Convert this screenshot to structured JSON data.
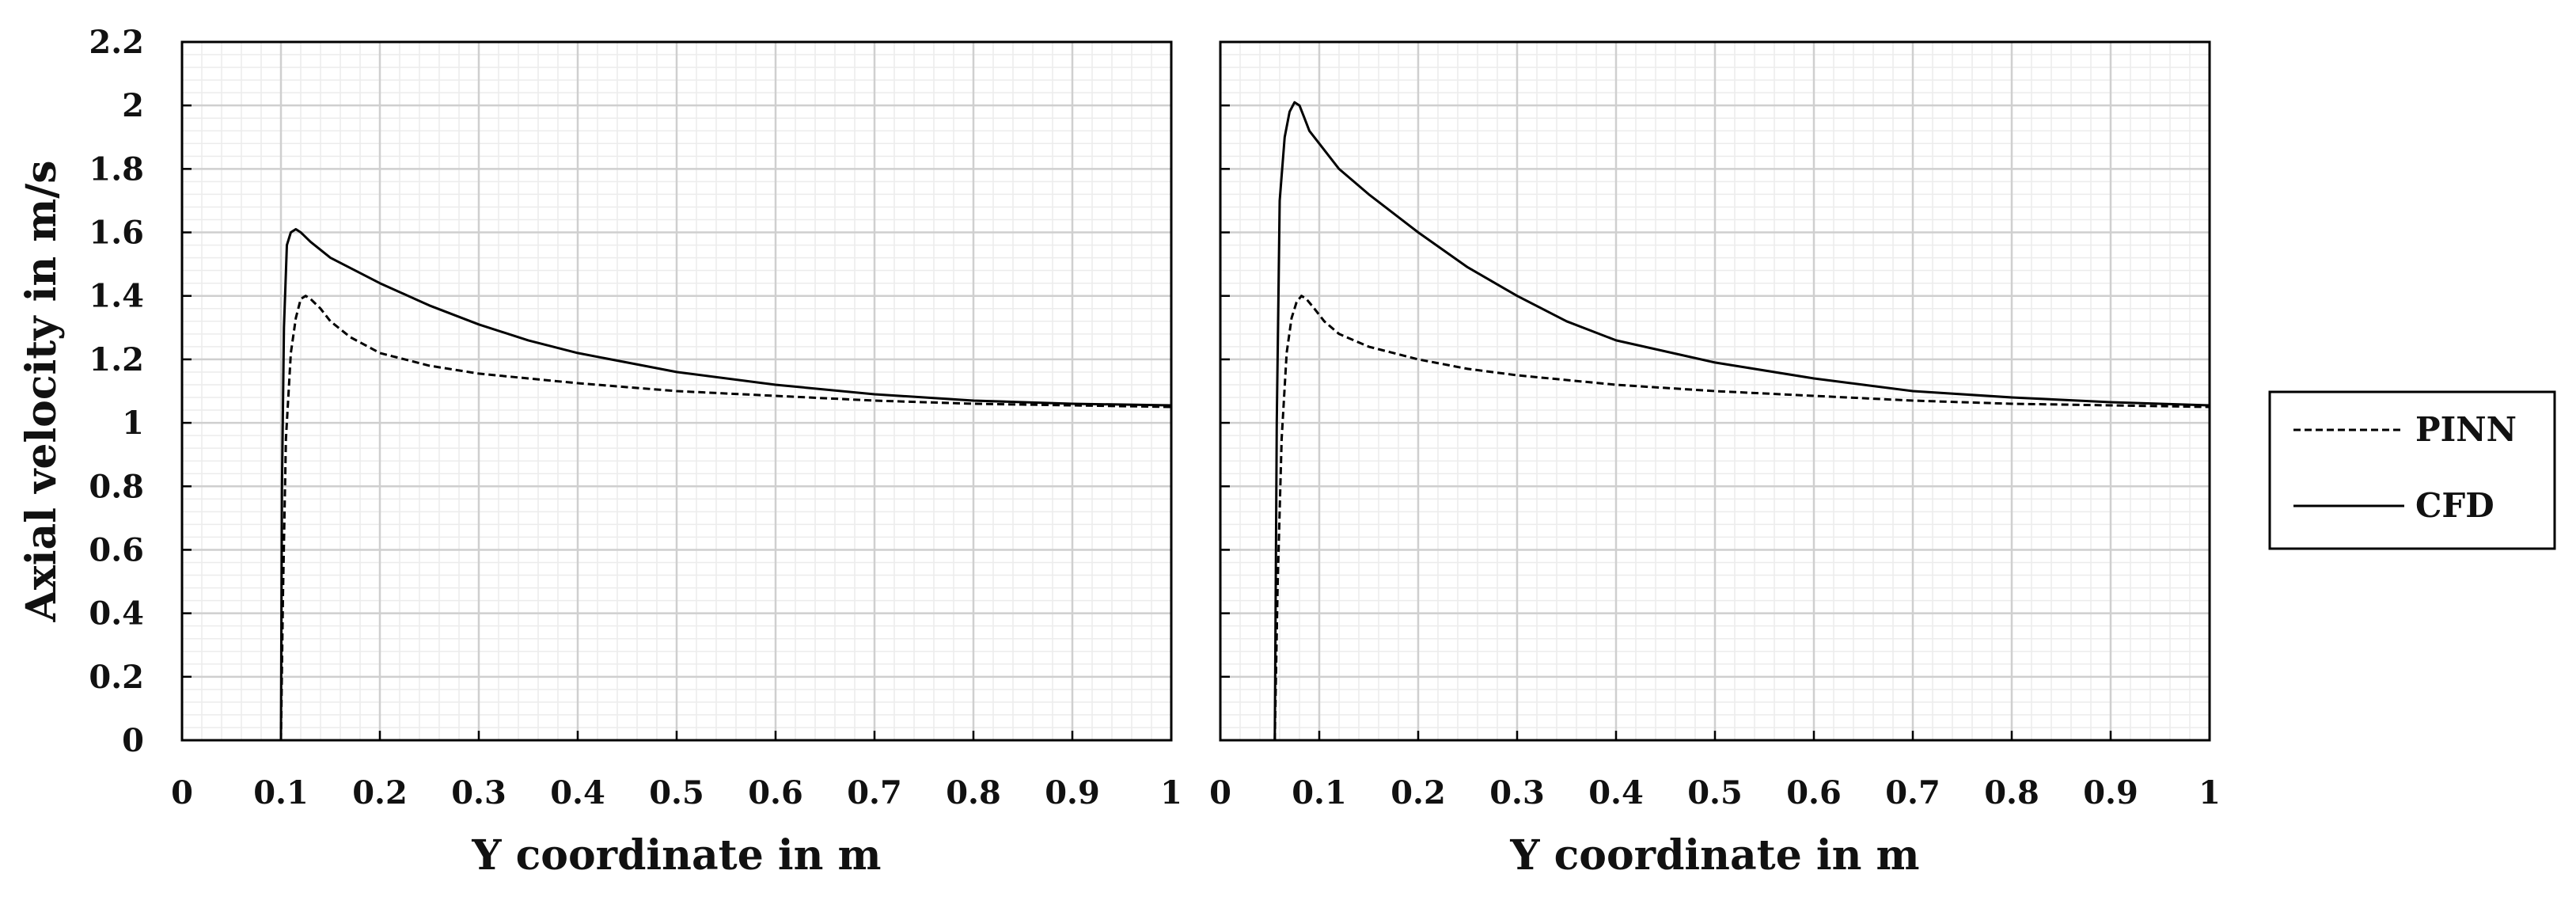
{
  "chart_data": {
    "type": "line",
    "ylabel": "Axial velocity in m/s",
    "legend": {
      "placement": "right",
      "entries": [
        {
          "label": "PINN",
          "style": "dashed"
        },
        {
          "label": "CFD",
          "style": "solid"
        }
      ]
    },
    "grid": true,
    "panels": [
      {
        "xlabel": "Y coordinate in m",
        "xlim": [
          0,
          1
        ],
        "ylim": [
          0,
          2.2
        ],
        "xticks": [
          "0",
          "0.1",
          "0.2",
          "0.3",
          "0.4",
          "0.5",
          "0.6",
          "0.7",
          "0.8",
          "0.9",
          "1"
        ],
        "yticks": [
          "0",
          "0.2",
          "0.4",
          "0.6",
          "0.8",
          "1",
          "1.2",
          "1.4",
          "1.6",
          "1.8",
          "2",
          "2.2"
        ],
        "series": [
          {
            "name": "PINN",
            "style": "dashed",
            "x": [
              0.1,
              0.102,
              0.105,
              0.11,
              0.115,
              0.12,
              0.125,
              0.13,
              0.14,
              0.15,
              0.17,
              0.2,
              0.25,
              0.3,
              0.35,
              0.4,
              0.5,
              0.6,
              0.7,
              0.8,
              0.9,
              1.0
            ],
            "y": [
              0.0,
              0.45,
              0.95,
              1.22,
              1.33,
              1.39,
              1.4,
              1.39,
              1.36,
              1.32,
              1.27,
              1.22,
              1.18,
              1.155,
              1.14,
              1.125,
              1.1,
              1.085,
              1.07,
              1.06,
              1.055,
              1.05
            ]
          },
          {
            "name": "CFD",
            "style": "solid",
            "x": [
              0.1,
              0.101,
              0.103,
              0.106,
              0.11,
              0.115,
              0.12,
              0.13,
              0.15,
              0.2,
              0.25,
              0.3,
              0.35,
              0.4,
              0.45,
              0.5,
              0.6,
              0.7,
              0.8,
              0.9,
              1.0
            ],
            "y": [
              0.0,
              0.8,
              1.3,
              1.56,
              1.6,
              1.61,
              1.6,
              1.57,
              1.52,
              1.44,
              1.37,
              1.31,
              1.26,
              1.22,
              1.19,
              1.16,
              1.12,
              1.09,
              1.07,
              1.06,
              1.055
            ]
          }
        ]
      },
      {
        "xlabel": "Y coordinate in m",
        "xlim": [
          0,
          1
        ],
        "ylim": [
          0,
          2.2
        ],
        "xticks": [
          "0",
          "0.1",
          "0.2",
          "0.3",
          "0.4",
          "0.5",
          "0.6",
          "0.7",
          "0.8",
          "0.9",
          "1"
        ],
        "series": [
          {
            "name": "PINN",
            "style": "dashed",
            "x": [
              0.055,
              0.058,
              0.062,
              0.067,
              0.072,
              0.077,
              0.082,
              0.087,
              0.095,
              0.105,
              0.12,
              0.15,
              0.2,
              0.25,
              0.3,
              0.4,
              0.5,
              0.6,
              0.7,
              0.8,
              0.9,
              1.0
            ],
            "y": [
              0.0,
              0.5,
              0.95,
              1.22,
              1.33,
              1.38,
              1.4,
              1.39,
              1.36,
              1.32,
              1.28,
              1.24,
              1.2,
              1.17,
              1.15,
              1.12,
              1.1,
              1.085,
              1.07,
              1.06,
              1.055,
              1.05
            ]
          },
          {
            "name": "CFD",
            "style": "solid",
            "x": [
              0.055,
              0.057,
              0.06,
              0.065,
              0.07,
              0.075,
              0.08,
              0.085,
              0.09,
              0.1,
              0.12,
              0.15,
              0.2,
              0.25,
              0.3,
              0.35,
              0.4,
              0.5,
              0.6,
              0.7,
              0.8,
              0.9,
              1.0
            ],
            "y": [
              0.0,
              1.0,
              1.7,
              1.9,
              1.98,
              2.01,
              2.0,
              1.96,
              1.92,
              1.88,
              1.8,
              1.72,
              1.6,
              1.49,
              1.4,
              1.32,
              1.26,
              1.19,
              1.14,
              1.1,
              1.08,
              1.065,
              1.055
            ]
          }
        ]
      }
    ]
  }
}
